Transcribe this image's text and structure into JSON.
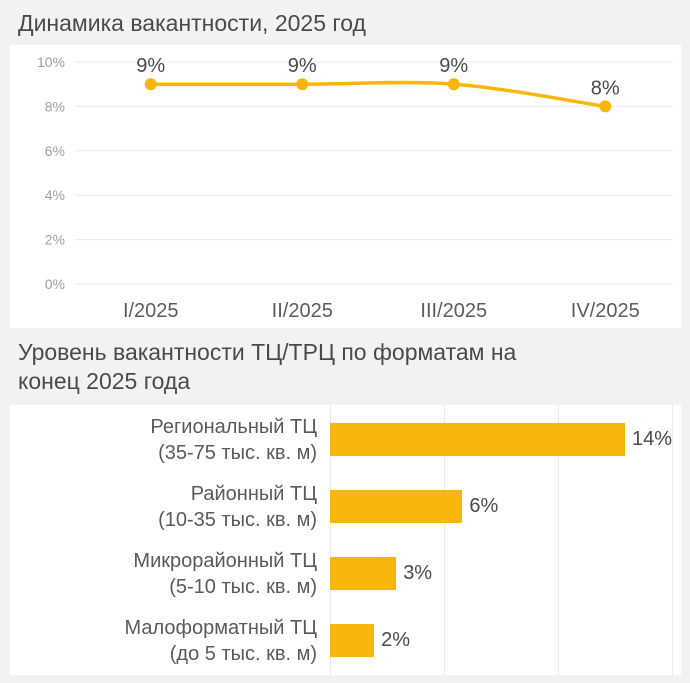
{
  "colors": {
    "accent": "#F8B60D",
    "background": "#F2F2F2",
    "panel_background": "#FFFFFF",
    "gridline": "#EAEAEA",
    "title_text": "#4A4A4A",
    "ytick_text": "#9E9E9E",
    "xtick_text": "#5C5C5C",
    "data_label_text": "#4A4A4A",
    "category_text": "#5A5A5A"
  },
  "chart_data": [
    {
      "type": "line",
      "title": "Динамика вакантности, 2025 год",
      "categories": [
        "I/2025",
        "II/2025",
        "III/2025",
        "IV/2025"
      ],
      "values": [
        9,
        9,
        9,
        8
      ],
      "data_labels": [
        "9%",
        "9%",
        "9%",
        "8%"
      ],
      "xlabel": "",
      "ylabel": "",
      "ylim": [
        0,
        10
      ],
      "yticks": [
        0,
        2,
        4,
        6,
        8,
        10
      ],
      "ytick_labels": [
        "0%",
        "2%",
        "4%",
        "6%",
        "8%",
        "10%"
      ],
      "grid": true,
      "legend": false,
      "line_color": "#F8B60D",
      "marker": "circle"
    },
    {
      "type": "bar",
      "orientation": "horizontal",
      "title": "Уровень вакантности ТЦ/ТРЦ по форматам на конец 2025 года",
      "title_lines": [
        "Уровень вакантности ТЦ/ТРЦ по форматам на",
        "конец 2025 года"
      ],
      "categories": [
        "Региональный ТЦ (35-75 тыс. кв. м)",
        "Районный ТЦ (10-35 тыс. кв. м)",
        "Микрорайонный ТЦ (5-10 тыс. кв. м)",
        "Малоформатный ТЦ (до 5 тыс. кв. м)"
      ],
      "category_lines": [
        [
          "Региональный ТЦ",
          "(35-75 тыс. кв. м)"
        ],
        [
          "Районный ТЦ",
          "(10-35 тыс. кв. м)"
        ],
        [
          "Микрорайонный ТЦ",
          "(5-10 тыс. кв. м)"
        ],
        [
          "Малоформатный ТЦ",
          "(до 5 тыс. кв. м)"
        ]
      ],
      "values": [
        14,
        6,
        3,
        2
      ],
      "data_labels": [
        "14%",
        "6%",
        "3%",
        "2%"
      ],
      "xlim": [
        0,
        15.5
      ],
      "grid": true,
      "legend": false,
      "bar_color": "#F8B60D"
    }
  ]
}
